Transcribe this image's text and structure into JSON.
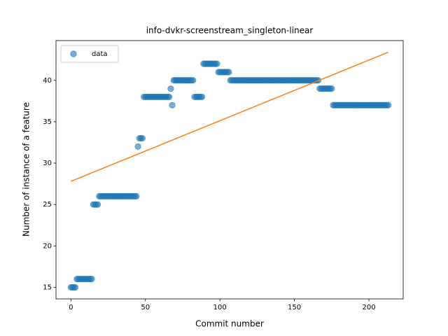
{
  "chart_data": {
    "type": "scatter",
    "title": "info-dvkr-screenstream_singleton-linear",
    "xlabel": "Commit number",
    "ylabel": "Number of instance of a feature",
    "xlim": [
      -10,
      223
    ],
    "ylim": [
      13.6,
      44.8
    ],
    "xticks": [
      0,
      50,
      100,
      150,
      200
    ],
    "yticks": [
      15,
      20,
      25,
      30,
      35,
      40
    ],
    "legend": "upper left",
    "series": [
      {
        "name": "data",
        "color": "#1f77b4",
        "opacity": 0.6,
        "style": "marker",
        "x": [
          0,
          1,
          2,
          3,
          4,
          5,
          6,
          7,
          8,
          9,
          10,
          11,
          12,
          13,
          14,
          15,
          16,
          17,
          18,
          19,
          20,
          21,
          22,
          23,
          24,
          25,
          26,
          27,
          28,
          29,
          30,
          31,
          32,
          33,
          34,
          35,
          36,
          37,
          38,
          39,
          40,
          41,
          42,
          43,
          44,
          45,
          46,
          47,
          48,
          49,
          50,
          51,
          52,
          53,
          54,
          55,
          56,
          57,
          58,
          59,
          60,
          61,
          62,
          63,
          64,
          65,
          66,
          67,
          68,
          69,
          70,
          71,
          72,
          73,
          74,
          75,
          76,
          77,
          78,
          79,
          80,
          81,
          82,
          83,
          84,
          85,
          86,
          87,
          88,
          89,
          90,
          91,
          92,
          93,
          94,
          95,
          96,
          97,
          98,
          99,
          100,
          101,
          102,
          103,
          104,
          105,
          106,
          107,
          108,
          109,
          110,
          111,
          112,
          113,
          114,
          115,
          116,
          117,
          118,
          119,
          120,
          121,
          122,
          123,
          124,
          125,
          126,
          127,
          128,
          129,
          130,
          131,
          132,
          133,
          134,
          135,
          136,
          137,
          138,
          139,
          140,
          141,
          142,
          143,
          144,
          145,
          146,
          147,
          148,
          149,
          150,
          151,
          152,
          153,
          154,
          155,
          156,
          157,
          158,
          159,
          160,
          161,
          162,
          163,
          164,
          165,
          166,
          167,
          168,
          169,
          170,
          171,
          172,
          173,
          174,
          175,
          176,
          177,
          178,
          179,
          180,
          181,
          182,
          183,
          184,
          185,
          186,
          187,
          188,
          189,
          190,
          191,
          192,
          193,
          194,
          195,
          196,
          197,
          198,
          199,
          200,
          201,
          202,
          203,
          204,
          205,
          206,
          207,
          208,
          209,
          210,
          211,
          212,
          213
        ],
        "values": [
          15,
          15,
          15,
          15,
          16,
          16,
          16,
          16,
          16,
          16,
          16,
          16,
          16,
          16,
          16,
          25,
          25,
          25,
          25,
          26,
          26,
          26,
          26,
          26,
          26,
          26,
          26,
          26,
          26,
          26,
          26,
          26,
          26,
          26,
          26,
          26,
          26,
          26,
          26,
          26,
          26,
          26,
          26,
          26,
          26,
          32,
          33,
          33,
          33,
          38,
          38,
          38,
          38,
          38,
          38,
          38,
          38,
          38,
          38,
          38,
          38,
          38,
          38,
          38,
          38,
          38,
          38,
          39,
          37,
          40,
          40,
          40,
          40,
          40,
          40,
          40,
          40,
          40,
          40,
          40,
          40,
          40,
          40,
          38,
          38,
          38,
          38,
          38,
          38,
          42,
          42,
          42,
          42,
          42,
          42,
          42,
          42,
          42,
          42,
          41,
          41,
          41,
          41,
          41,
          41,
          41,
          41,
          40,
          40,
          40,
          40,
          40,
          40,
          40,
          40,
          40,
          40,
          40,
          40,
          40,
          40,
          40,
          40,
          40,
          40,
          40,
          40,
          40,
          40,
          40,
          40,
          40,
          40,
          40,
          40,
          40,
          40,
          40,
          40,
          40,
          40,
          40,
          40,
          40,
          40,
          40,
          40,
          40,
          40,
          40,
          40,
          40,
          40,
          40,
          40,
          40,
          40,
          40,
          40,
          40,
          40,
          40,
          40,
          40,
          40,
          40,
          40,
          39,
          39,
          39,
          39,
          39,
          39,
          39,
          39,
          39,
          37,
          37,
          37,
          37,
          37,
          37,
          37,
          37,
          37,
          37,
          37,
          37,
          37,
          37,
          37,
          37,
          37,
          37,
          37,
          37,
          37,
          37,
          37,
          37,
          37,
          37,
          37,
          37,
          37,
          37,
          37,
          37,
          37,
          37,
          37,
          37,
          37,
          37
        ]
      },
      {
        "color": "#ff7f0e",
        "style": "line",
        "x": [
          0,
          213
        ],
        "values": [
          27.8,
          43.4
        ]
      }
    ]
  }
}
